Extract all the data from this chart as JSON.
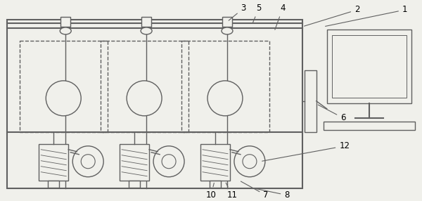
{
  "bg_color": "#f0f0eb",
  "line_color": "#606060",
  "fig_width": 6.0,
  "fig_height": 2.86,
  "lw": 1.0
}
